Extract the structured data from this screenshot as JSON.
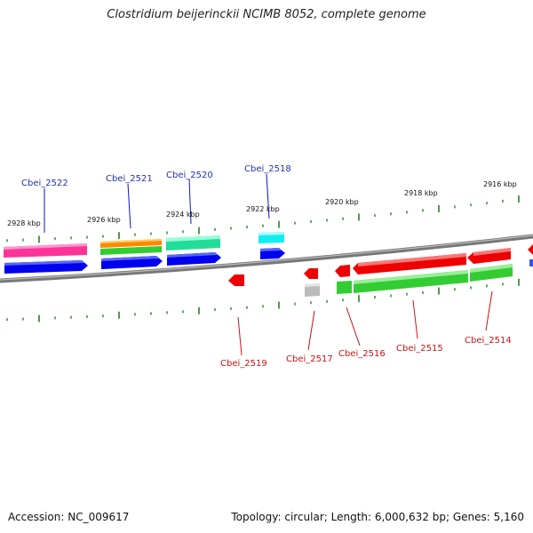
{
  "title": "Clostridium beijerinckii NCIMB 8052, complete genome",
  "footer": {
    "accession": "Accession: NC_009617",
    "topology": "Topology: circular; Length: 6,000,632 bp; Genes: 5,160"
  },
  "ruler_labels": [
    "2928 kbp",
    "2926 kbp",
    "2924 kbp",
    "2922 kbp",
    "2920 kbp",
    "2918 kbp",
    "2916 kbp"
  ],
  "genes": [
    {
      "name": "Cbei_2522",
      "strand": "+",
      "color": "#2233aa"
    },
    {
      "name": "Cbei_2521",
      "strand": "+",
      "color": "#2233aa"
    },
    {
      "name": "Cbei_2520",
      "strand": "+",
      "color": "#2233aa"
    },
    {
      "name": "Cbei_2518",
      "strand": "+",
      "color": "#2233aa"
    },
    {
      "name": "Cbei_2519",
      "strand": "-",
      "color": "#dd1111"
    },
    {
      "name": "Cbei_2517",
      "strand": "-",
      "color": "#dd1111"
    },
    {
      "name": "Cbei_2516",
      "strand": "-",
      "color": "#dd1111"
    },
    {
      "name": "Cbei_2515",
      "strand": "-",
      "color": "#dd1111"
    },
    {
      "name": "Cbei_2514",
      "strand": "-",
      "color": "#dd1111"
    }
  ],
  "colors": {
    "backbone": "#777777",
    "tick": "#1a8a1a",
    "cds_forward": "#0000ee",
    "cds_reverse": "#ee0000",
    "pink": "#ff3399",
    "orange": "#ff8800",
    "green": "#33cc33",
    "teal": "#22dd99",
    "cyan": "#11eeee",
    "gray": "#bbbbbb"
  }
}
